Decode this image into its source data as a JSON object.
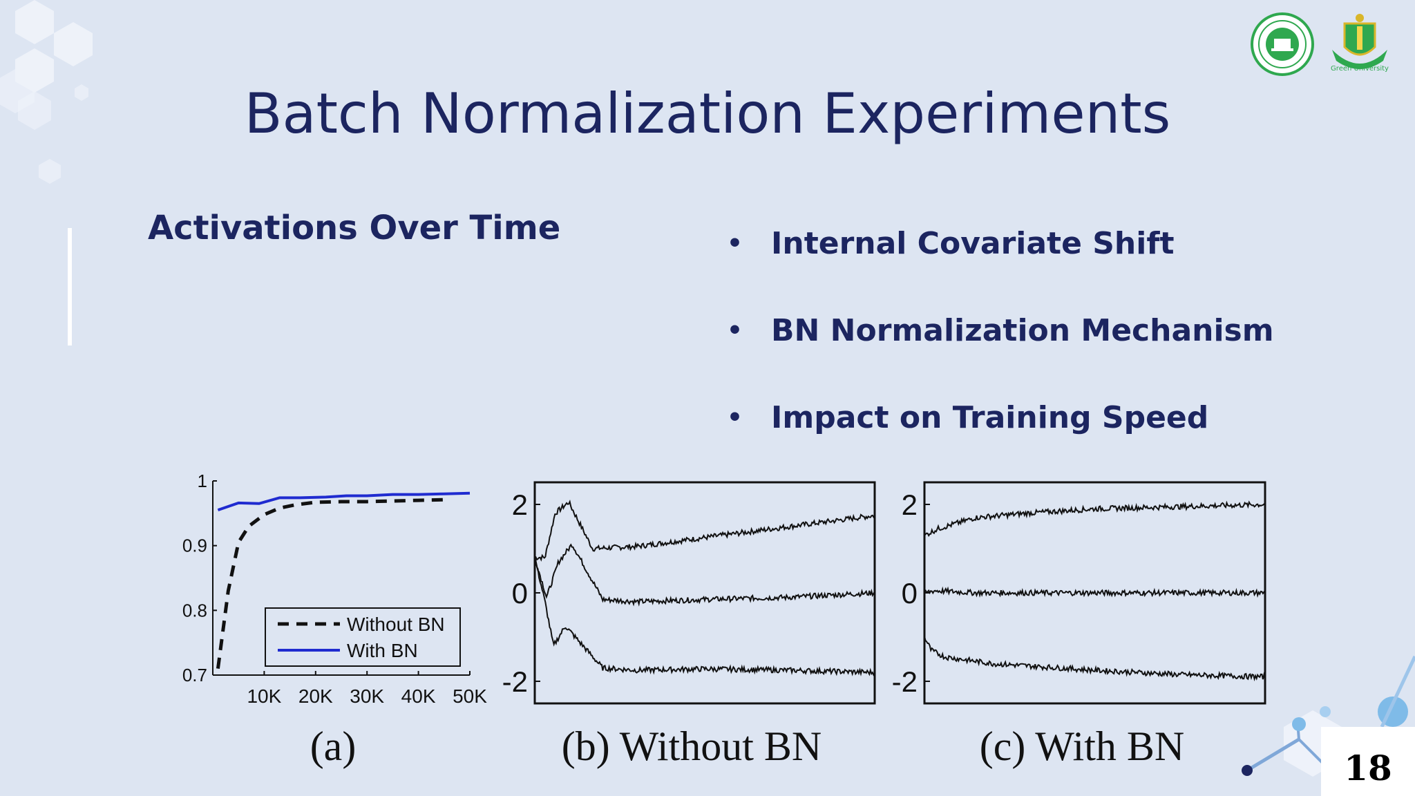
{
  "slide": {
    "title": "Batch Normalization Experiments",
    "subtitle": "Activations Over Time",
    "bullets": [
      "Internal Covariate Shift",
      "BN Normalization Mechanism",
      "Impact on Training Speed"
    ],
    "page_number": "18",
    "logos": {
      "left": {
        "icon": "cse-department-seal-icon",
        "text": "COMPUTER SCIENCE & ENGINEERING · GREEN UNIVERSITY OF BANGLADESH"
      },
      "right": {
        "icon": "green-university-crest-icon",
        "text": "Green University"
      }
    },
    "colors": {
      "background": "#dde5f2",
      "title": "#1c2560",
      "with_bn": "#1f2bd0",
      "without_bn": "#111111",
      "logo_green": "#2fa84f"
    }
  },
  "chart_data": [
    {
      "type": "line",
      "caption": "(a)",
      "x": [
        2000,
        5000,
        10000,
        15000,
        20000,
        25000,
        30000,
        35000,
        40000,
        45000,
        50000
      ],
      "xticks": [
        "10K",
        "20K",
        "30K",
        "40K",
        "50K"
      ],
      "xtick_values": [
        10000,
        20000,
        30000,
        40000,
        50000
      ],
      "yticks": [
        "0.7",
        "0.8",
        "0.9",
        "1"
      ],
      "ytick_values": [
        0.7,
        0.8,
        0.9,
        1.0
      ],
      "xlim": [
        0,
        50000
      ],
      "ylim": [
        0.7,
        1.0
      ],
      "legend_position": "bottom-right",
      "series": [
        {
          "name": "Without BN",
          "style": "dashed",
          "x": [
            1000,
            3000,
            5000,
            7000,
            10000,
            13000,
            16000,
            20000,
            25000,
            30000,
            35000,
            40000,
            45000
          ],
          "values": [
            0.71,
            0.83,
            0.905,
            0.93,
            0.948,
            0.958,
            0.963,
            0.967,
            0.968,
            0.968,
            0.969,
            0.97,
            0.971
          ]
        },
        {
          "name": "With BN",
          "style": "solid",
          "x": [
            1000,
            5000,
            9000,
            13000,
            17000,
            22000,
            26000,
            30000,
            35000,
            40000,
            45000,
            50000
          ],
          "values": [
            0.955,
            0.966,
            0.965,
            0.974,
            0.974,
            0.975,
            0.977,
            0.977,
            0.979,
            0.979,
            0.98,
            0.981
          ]
        }
      ]
    },
    {
      "type": "line",
      "caption": "(b) Without BN",
      "yticks": [
        "2",
        "0",
        "-2"
      ],
      "ytick_values": [
        2,
        0,
        -2
      ],
      "ylim": [
        -2.5,
        2.5
      ],
      "series": [
        {
          "keypoints_t": [
            0,
            0.03,
            0.06,
            0.1,
            0.17,
            0.3,
            0.5,
            0.75,
            1.0
          ],
          "keypoints_v": [
            0.8,
            0.8,
            1.8,
            2.05,
            1.0,
            1.05,
            1.25,
            1.5,
            1.75
          ]
        },
        {
          "keypoints_t": [
            0,
            0.035,
            0.07,
            0.11,
            0.2,
            0.3,
            0.5,
            0.75,
            1.0
          ],
          "keypoints_v": [
            0.8,
            -0.1,
            0.7,
            1.1,
            -0.15,
            -0.2,
            -0.15,
            -0.1,
            0.0
          ]
        },
        {
          "keypoints_t": [
            0,
            0.03,
            0.055,
            0.09,
            0.2,
            0.3,
            0.5,
            0.75,
            1.0
          ],
          "keypoints_v": [
            0.8,
            -0.2,
            -1.2,
            -0.75,
            -1.7,
            -1.75,
            -1.72,
            -1.75,
            -1.8
          ]
        }
      ]
    },
    {
      "type": "line",
      "caption": "(c) With BN",
      "yticks": [
        "2",
        "0",
        "-2"
      ],
      "ytick_values": [
        2,
        0,
        -2
      ],
      "ylim": [
        -2.5,
        2.5
      ],
      "series": [
        {
          "keypoints_t": [
            0,
            0.04,
            0.15,
            0.3,
            0.5,
            0.75,
            1.0
          ],
          "keypoints_v": [
            1.3,
            1.45,
            1.7,
            1.8,
            1.9,
            1.95,
            2.0
          ]
        },
        {
          "keypoints_t": [
            0,
            0.03,
            0.15,
            0.5,
            1.0
          ],
          "keypoints_v": [
            0.0,
            0.05,
            0.0,
            0.0,
            0.0
          ]
        },
        {
          "keypoints_t": [
            0,
            0.02,
            0.06,
            0.2,
            0.5,
            0.75,
            1.0
          ],
          "keypoints_v": [
            -1.0,
            -1.3,
            -1.45,
            -1.6,
            -1.75,
            -1.85,
            -1.9
          ]
        }
      ]
    }
  ]
}
